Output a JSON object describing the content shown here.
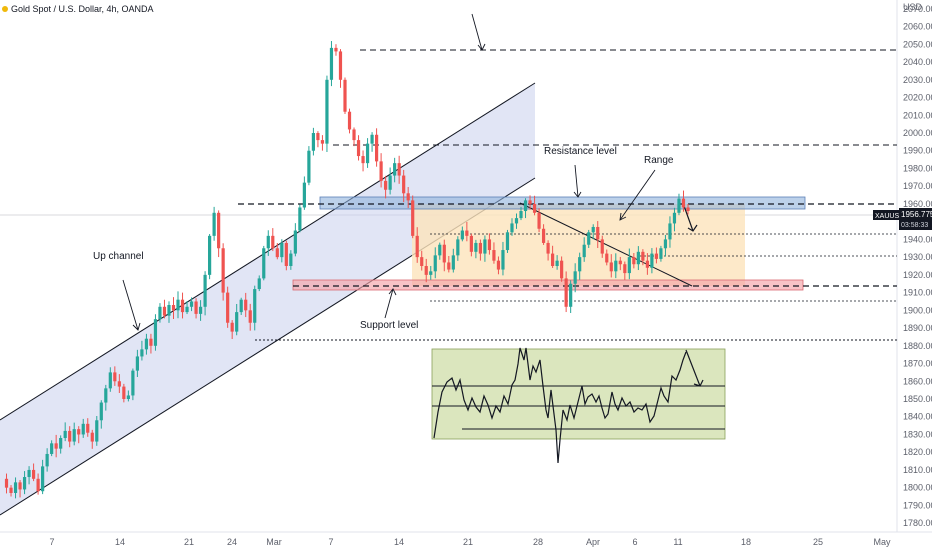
{
  "header": {
    "symbol_line": "Gold Spot / U.S. Dollar, 4h, OANDA",
    "currency": "USD"
  },
  "price_badge": {
    "symbol": "XAUUSD",
    "price": "1956.775",
    "countdown": "03:58:33"
  },
  "colors": {
    "up_candle": "#26a69a",
    "down_candle": "#ef5350",
    "channel_fill": "#c9cfec",
    "resistance_zone": "#90b2dc",
    "support_zone": "#f5a3a8",
    "range_fill": "#fde3bc",
    "indicator_fill": "#d2e0ae"
  },
  "annotations": {
    "up_channel": "Up channel",
    "resistance": "Resistance level",
    "range": "Range",
    "support": "Support level"
  },
  "chart_data": {
    "type": "candlestick",
    "title": "Gold Spot / U.S. Dollar, 4h, OANDA",
    "ylabel": "USD",
    "ylim": [
      1775,
      2075
    ],
    "x_ticks": [
      "7",
      "14",
      "21",
      "24",
      "Mar",
      "7",
      "14",
      "21",
      "28",
      "Apr",
      "6",
      "11",
      "18",
      "25",
      "May"
    ],
    "y_ticks": [
      1780,
      1790,
      1800,
      1810,
      1820,
      1830,
      1840,
      1850,
      1860,
      1870,
      1880,
      1890,
      1900,
      1910,
      1920,
      1930,
      1940,
      1950,
      1960,
      1970,
      1980,
      1990,
      2000,
      2010,
      2020,
      2030,
      2040,
      2050,
      2060,
      2070
    ],
    "levels": {
      "resistance_line": 1963,
      "support_line": 1917,
      "top_dashed": 2050,
      "mid_dashed": 1997,
      "lower_dashed": 1888,
      "range_inner_top": 1948,
      "range_dotted": 1934,
      "range_dotted_low": 1909,
      "last_price": 1956.775
    },
    "price_path": [
      1805,
      1800,
      1797,
      1803,
      1799,
      1806,
      1810,
      1805,
      1798,
      1812,
      1819,
      1825,
      1822,
      1828,
      1832,
      1826,
      1833,
      1830,
      1836,
      1831,
      1826,
      1838,
      1848,
      1856,
      1865,
      1860,
      1857,
      1850,
      1852,
      1866,
      1874,
      1878,
      1884,
      1880,
      1895,
      1902,
      1897,
      1903,
      1900,
      1906,
      1899,
      1902,
      1905,
      1898,
      1902,
      1920,
      1942,
      1955,
      1935,
      1910,
      1893,
      1888,
      1899,
      1906,
      1900,
      1893,
      1912,
      1918,
      1935,
      1942,
      1935,
      1930,
      1938,
      1925,
      1932,
      1945,
      1958,
      1972,
      1990,
      2000,
      1996,
      1994,
      2030,
      2048,
      2046,
      2030,
      2012,
      2002,
      1996,
      1987,
      1983,
      1994,
      1999,
      1984,
      1973,
      1968,
      1976,
      1983,
      1976,
      1966,
      1962,
      1942,
      1930,
      1925,
      1920,
      1922,
      1931,
      1937,
      1927,
      1923,
      1931,
      1940,
      1945,
      1942,
      1933,
      1938,
      1932,
      1940,
      1934,
      1928,
      1923,
      1934,
      1944,
      1949,
      1952,
      1956,
      1962,
      1960,
      1955,
      1946,
      1938,
      1932,
      1925,
      1928,
      1918,
      1902,
      1915,
      1922,
      1930,
      1937,
      1944,
      1947,
      1940,
      1932,
      1927,
      1922,
      1928,
      1926,
      1921,
      1930,
      1926,
      1933,
      1928,
      1924,
      1932,
      1929,
      1935,
      1940,
      1949,
      1955,
      1963,
      1958,
      1956
    ]
  }
}
